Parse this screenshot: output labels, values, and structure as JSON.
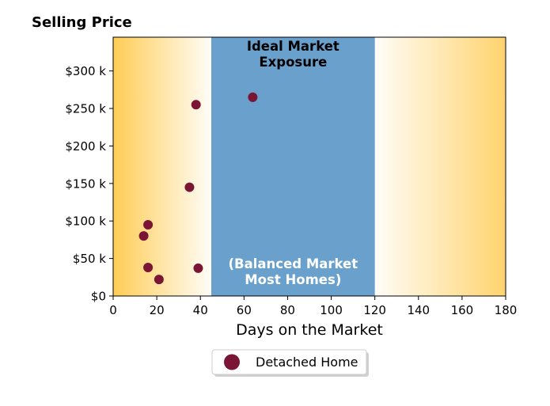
{
  "chart_data": {
    "type": "scatter",
    "title": "Selling Price",
    "xlabel": "Days on the Market",
    "xlim": [
      0,
      180
    ],
    "ylim": [
      0,
      345000
    ],
    "x_ticks": [
      0,
      20,
      40,
      60,
      80,
      100,
      120,
      140,
      160,
      180
    ],
    "x_tick_labels": [
      "0",
      "20",
      "40",
      "60",
      "80",
      "100",
      "120",
      "140",
      "160",
      "180"
    ],
    "y_ticks": [
      0,
      50000,
      100000,
      150000,
      200000,
      250000,
      300000
    ],
    "y_tick_labels": [
      "$0",
      "$50 k",
      "$100 k",
      "$150 k",
      "$200 k",
      "$250 k",
      "$300 k"
    ],
    "grid": false,
    "legend_placement": "below plot, centered",
    "band": {
      "x_range": [
        45,
        120
      ],
      "color": "#6aa0cc",
      "label_top": "Ideal Market\nExposure",
      "label_bottom": "(Balanced Market\nMost Homes)"
    },
    "background_gradient_color": "#ffcc55",
    "series": [
      {
        "name": "Detached Home",
        "color": "#7a1535",
        "points": [
          {
            "x": 64,
            "y": 265000
          },
          {
            "x": 38,
            "y": 255000
          },
          {
            "x": 35,
            "y": 145000
          },
          {
            "x": 16,
            "y": 95000
          },
          {
            "x": 14,
            "y": 80000
          },
          {
            "x": 16,
            "y": 38000
          },
          {
            "x": 39,
            "y": 37000
          },
          {
            "x": 21,
            "y": 22000
          }
        ]
      }
    ]
  }
}
